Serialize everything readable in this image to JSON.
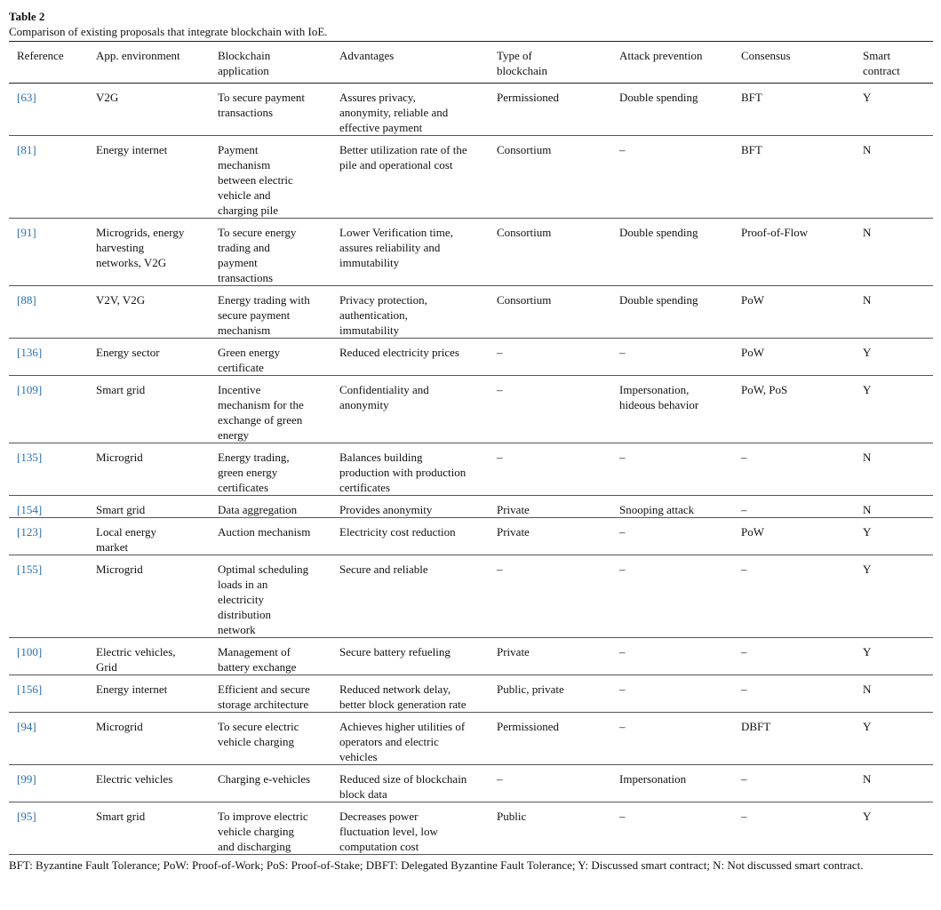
{
  "header": {
    "label": "Table 2",
    "caption": "Comparison of existing proposals that integrate blockchain with IoE."
  },
  "table": {
    "columns": [
      "Reference",
      "App. environment",
      "Blockchain application",
      "Advantages",
      "Type of blockchain",
      "Attack prevention",
      "Consensus",
      "Smart contract"
    ],
    "rows": [
      [
        "[63]",
        "V2G",
        "To secure payment transactions",
        "Assures privacy, anonymity, reliable and effective payment",
        "Permissioned",
        "Double spending",
        "BFT",
        "Y"
      ],
      [
        "[81]",
        "Energy internet",
        "Payment mechanism between electric vehicle and charging pile",
        "Better utilization rate of the pile and operational cost",
        "Consortium",
        "–",
        "BFT",
        "N"
      ],
      [
        "[91]",
        "Microgrids, energy harvesting networks, V2G",
        "To secure energy trading and payment transactions",
        "Lower Verification time, assures reliability and immutability",
        "Consortium",
        "Double spending",
        "Proof-of-Flow",
        "N"
      ],
      [
        "[88]",
        "V2V, V2G",
        "Energy trading with secure payment mechanism",
        "Privacy protection, authentication, immutability",
        "Consortium",
        "Double spending",
        "PoW",
        "N"
      ],
      [
        "[136]",
        "Energy sector",
        "Green energy certificate",
        "Reduced electricity prices",
        "–",
        "–",
        "PoW",
        "Y"
      ],
      [
        "[109]",
        "Smart grid",
        "Incentive mechanism for the exchange of green energy",
        "Confidentiality and anonymity",
        "–",
        "Impersonation, hideous behavior",
        "PoW, PoS",
        "Y"
      ],
      [
        "[135]",
        "Microgrid",
        "Energy trading, green energy certificates",
        "Balances building production with production certificates",
        "–",
        "–",
        "–",
        "N"
      ],
      [
        "[154]",
        "Smart grid",
        "Data aggregation",
        "Provides anonymity",
        "Private",
        "Snooping attack",
        "–",
        "N"
      ],
      [
        "[123]",
        "Local energy market",
        "Auction mechanism",
        "Electricity cost reduction",
        "Private",
        "–",
        "PoW",
        "Y"
      ],
      [
        "[155]",
        "Microgrid",
        "Optimal scheduling loads in an electricity distribution network",
        "Secure and reliable",
        "–",
        "–",
        "–",
        "Y"
      ],
      [
        "[100]",
        "Electric vehicles, Grid",
        "Management of battery exchange",
        "Secure battery refueling",
        "Private",
        "–",
        "–",
        "Y"
      ],
      [
        "[156]",
        "Energy internet",
        "Efficient and secure storage architecture",
        "Reduced network delay, better block generation rate",
        "Public, private",
        "–",
        "–",
        "N"
      ],
      [
        "[94]",
        "Microgrid",
        "To secure electric vehicle charging",
        "Achieves higher utilities of operators and electric vehicles",
        "Permissioned",
        "–",
        "DBFT",
        "Y"
      ],
      [
        "[99]",
        "Electric vehicles",
        "Charging e-vehicles",
        "Reduced size of blockchain block data",
        "–",
        "Impersonation",
        "–",
        "N"
      ],
      [
        "[95]",
        "Smart grid",
        "To improve electric vehicle charging and discharging",
        "Decreases power fluctuation level, low computation cost",
        "Public",
        "–",
        "–",
        "Y"
      ]
    ]
  },
  "footer": "BFT: Byzantine Fault Tolerance; PoW: Proof-of-Work; PoS: Proof-of-Stake; DBFT: Delegated Byzantine Fault Tolerance; Y: Discussed smart contract; N: Not discussed smart contract."
}
